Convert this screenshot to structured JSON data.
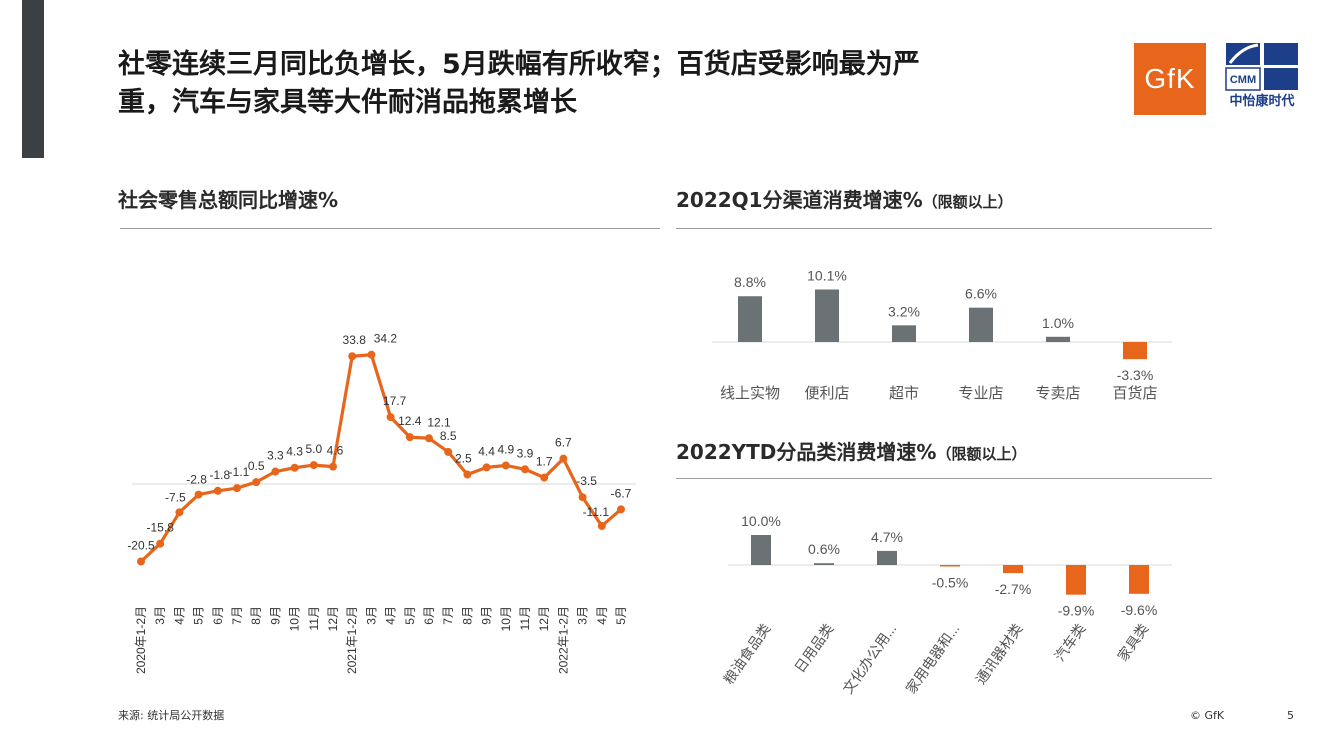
{
  "header": {
    "title_line1": "社零连续三月同比负增长，5月跌幅有所收窄；百货店受影响最为严",
    "title_line2": "重，汽车与家具等大件耐消品拖累增长",
    "logo_gfk_text": "GfK",
    "logo_cmm_text": "CMM",
    "logo_cmm_name": "中怡康时代"
  },
  "colors": {
    "orange": "#e8661b",
    "gray": "#6b7275",
    "dark": "#3c4043"
  },
  "left_title": "社会零售总额同比增速%",
  "right_top_title": "2022Q1分渠道消费增速%",
  "right_top_title_suffix": "（限额以上）",
  "right_bottom_title": "2022YTD分品类消费增速%",
  "right_bottom_title_suffix": "（限额以上）",
  "footer": {
    "source": "来源: 统计局公开数据",
    "copyright": "© GfK",
    "page": "5"
  },
  "chart_data": [
    {
      "type": "line",
      "x": [
        "2020年1-2月",
        "3月",
        "4月",
        "5月",
        "6月",
        "7月",
        "8月",
        "9月",
        "10月",
        "11月",
        "12月",
        "2021年1-2月",
        "3月",
        "4月",
        "5月",
        "6月",
        "7月",
        "8月",
        "9月",
        "10月",
        "11月",
        "12月",
        "2022年1-2月",
        "3月",
        "4月",
        "5月"
      ],
      "values": [
        -20.5,
        -15.8,
        -7.5,
        -2.8,
        -1.8,
        -1.1,
        0.5,
        3.3,
        4.3,
        5.0,
        4.6,
        33.8,
        34.2,
        17.7,
        12.4,
        12.1,
        8.5,
        2.5,
        4.4,
        4.9,
        3.9,
        1.7,
        6.7,
        -3.5,
        -11.1,
        -6.7
      ],
      "labels": [
        "-20.5",
        "-15.8",
        "-7.5",
        "-2.8",
        "-1.8",
        "-1.1",
        "0.5",
        "3.3",
        "4.3",
        "5.0",
        "4.6",
        "33.8",
        "34.2",
        "17.7",
        "12.4",
        "12.1",
        "8.5",
        "2.5",
        "4.4",
        "4.9",
        "3.9",
        "1.7",
        "6.7",
        "-3.5",
        "-11.1",
        "-6.7"
      ],
      "ylim": [
        -23,
        37
      ]
    },
    {
      "type": "bar",
      "categories": [
        "线上实物",
        "便利店",
        "超市",
        "专业店",
        "专卖店",
        "百货店"
      ],
      "values": [
        8.8,
        10.1,
        3.2,
        6.6,
        1.0,
        -3.3
      ],
      "labels": [
        "8.8%",
        "10.1%",
        "3.2%",
        "6.6%",
        "1.0%",
        "-3.3%"
      ]
    },
    {
      "type": "bar",
      "categories": [
        "粮油食品类",
        "日用品类",
        "文化办公用...",
        "家用电器和...",
        "通讯器材类",
        "汽车类",
        "家具类"
      ],
      "values": [
        10.0,
        0.6,
        4.7,
        -0.5,
        -2.7,
        -9.9,
        -9.6
      ],
      "labels": [
        "10.0%",
        "0.6%",
        "4.7%",
        "-0.5%",
        "-2.7%",
        "-9.9%",
        "-9.6%"
      ]
    }
  ]
}
